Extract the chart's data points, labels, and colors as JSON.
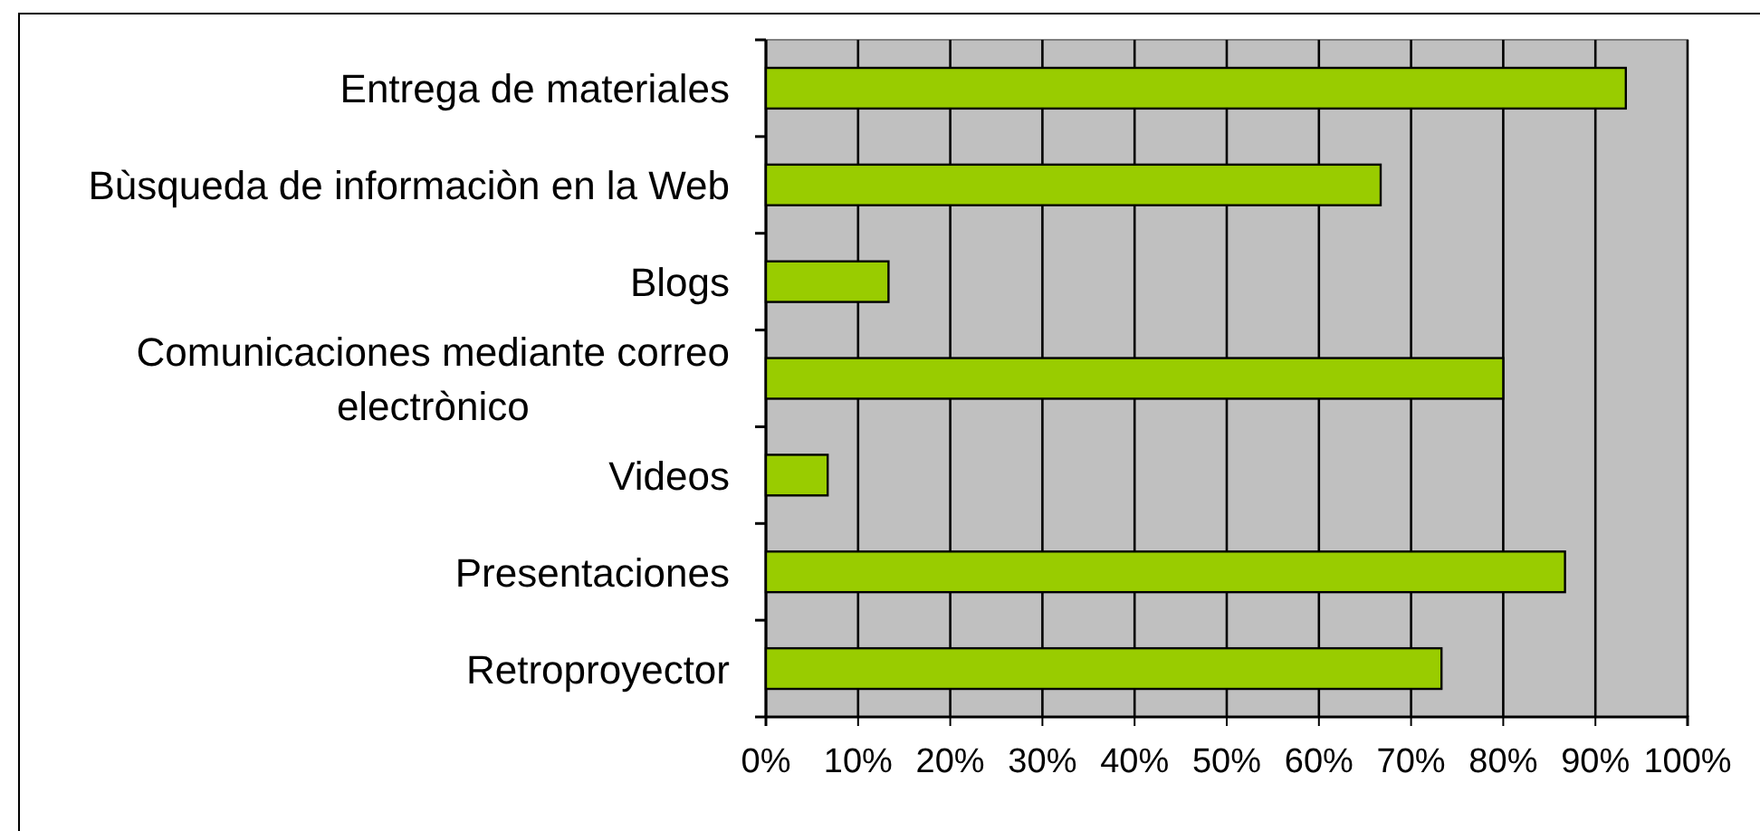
{
  "chart_data": {
    "type": "bar",
    "orientation": "horizontal",
    "categories": [
      "Entrega de materiales",
      "Bùsqueda de informaciòn en la Web",
      "Blogs",
      "Comunicaciones mediante correo electrònico",
      "Videos",
      "Presentaciones",
      "Retroproyector"
    ],
    "values": [
      93.3,
      66.7,
      13.3,
      80,
      6.7,
      86.7,
      73.3
    ],
    "color": "#99cc00",
    "xlim": [
      0,
      100
    ],
    "xticks": [
      {
        "value": 0,
        "label": "0%"
      },
      {
        "value": 10,
        "label": "10%"
      },
      {
        "value": 20,
        "label": "20%"
      },
      {
        "value": 30,
        "label": "30%"
      },
      {
        "value": 40,
        "label": "40%"
      },
      {
        "value": 50,
        "label": "50%"
      },
      {
        "value": 60,
        "label": "60%"
      },
      {
        "value": 70,
        "label": "70%"
      },
      {
        "value": 80,
        "label": "80%"
      },
      {
        "value": 90,
        "label": "90%"
      },
      {
        "value": 100,
        "label": "100%"
      }
    ],
    "grid": "x"
  }
}
